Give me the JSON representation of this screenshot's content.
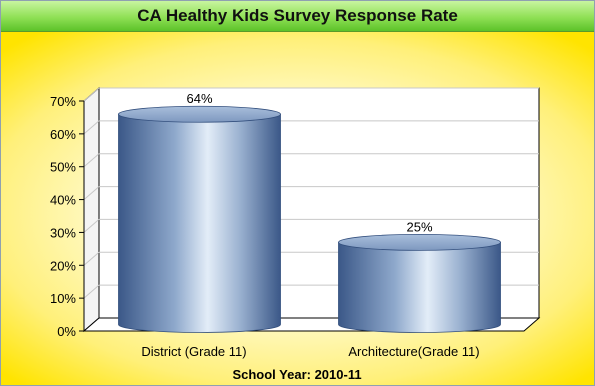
{
  "chart_data": {
    "type": "bar",
    "title": "CA Healthy Kids Survey Response Rate",
    "xlabel": "School Year: 2010-11",
    "ylabel": "",
    "categories": [
      "District (Grade 11)",
      "Architecture(Grade 11)"
    ],
    "values": [
      64,
      25
    ],
    "data_labels": [
      "64%",
      "25%"
    ],
    "ylim": [
      0,
      70
    ],
    "yticks": [
      0,
      10,
      20,
      30,
      40,
      50,
      60,
      70
    ],
    "ytick_labels": [
      "0%",
      "10%",
      "20%",
      "30%",
      "40%",
      "50%",
      "60%",
      "70%"
    ],
    "grid": true,
    "legend": "none",
    "style": "3d-cylinder",
    "colors": {
      "bar_dark": "#3c5a8c",
      "bar_light": "#dbe7f5",
      "title_bar": "#7fd94a",
      "background": "#fff07a"
    }
  }
}
